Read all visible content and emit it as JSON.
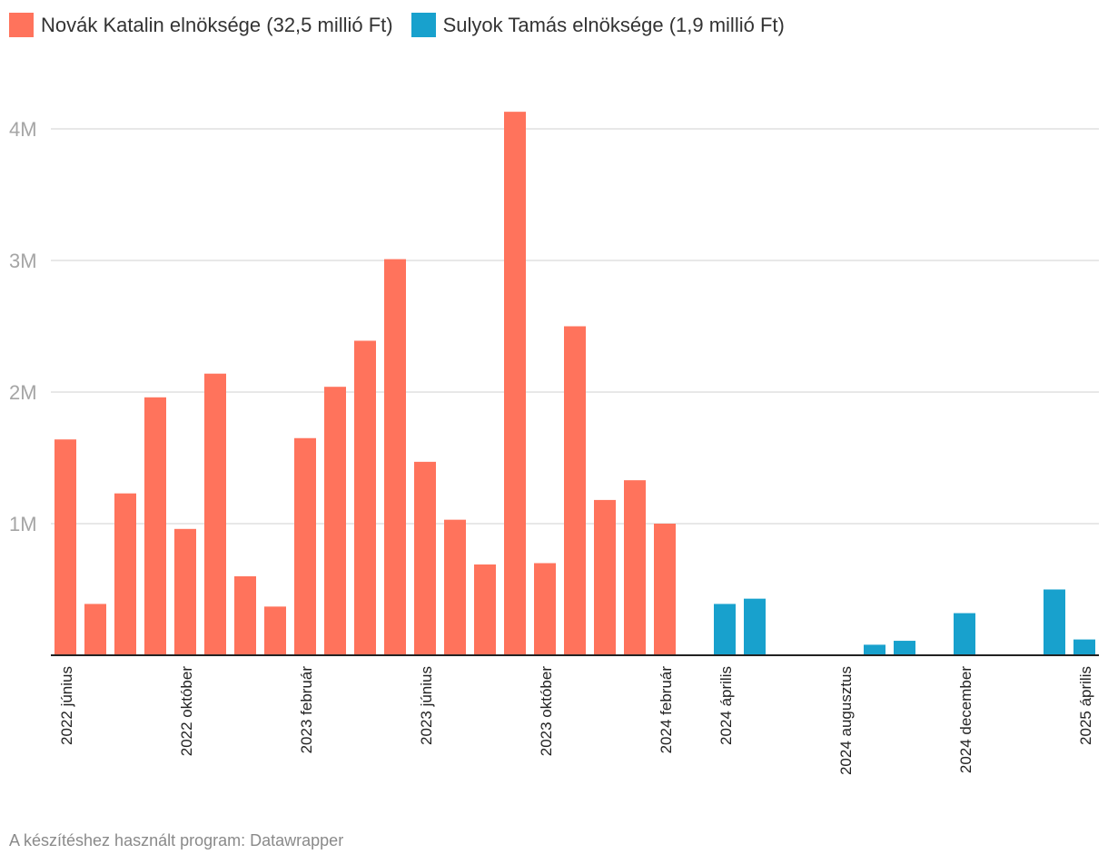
{
  "chart_data": {
    "type": "bar",
    "legend_position": "top-left",
    "grid": true,
    "ylim": [
      0,
      4000000
    ],
    "yticks": [
      {
        "v": 1000000,
        "label": "1M"
      },
      {
        "v": 2000000,
        "label": "2M"
      },
      {
        "v": 3000000,
        "label": "3M"
      },
      {
        "v": 4000000,
        "label": "4M"
      }
    ],
    "series": [
      {
        "name": "Novák Katalin elnöksége (32,5 millió Ft)",
        "color": "#ff735c"
      },
      {
        "name": "Sulyok Tamás elnöksége (1,9 millió Ft)",
        "color": "#18a1cd"
      }
    ],
    "months": [
      "2022-06",
      "2022-07",
      "2022-08",
      "2022-09",
      "2022-10",
      "2022-11",
      "2022-12",
      "2023-01",
      "2023-02",
      "2023-03",
      "2023-04",
      "2023-05",
      "2023-06",
      "2023-07",
      "2023-08",
      "2023-09",
      "2023-10",
      "2023-11",
      "2023-12",
      "2024-01",
      "2024-02",
      "2024-03",
      "2024-04",
      "2024-05",
      "2024-06",
      "2024-07",
      "2024-08",
      "2024-09",
      "2024-10",
      "2024-11",
      "2024-12",
      "2025-01",
      "2025-02",
      "2025-03",
      "2025-04"
    ],
    "values": [
      1640000,
      390000,
      1230000,
      1960000,
      960000,
      2140000,
      600000,
      370000,
      1650000,
      2040000,
      2390000,
      3010000,
      1470000,
      1030000,
      690000,
      4130000,
      700000,
      2500000,
      1180000,
      1330000,
      1000000,
      0,
      390000,
      430000,
      0,
      0,
      0,
      80000,
      110000,
      0,
      320000,
      0,
      0,
      500000,
      120000
    ],
    "series_index": [
      0,
      0,
      0,
      0,
      0,
      0,
      0,
      0,
      0,
      0,
      0,
      0,
      0,
      0,
      0,
      0,
      0,
      0,
      0,
      0,
      0,
      0,
      1,
      1,
      1,
      1,
      1,
      1,
      1,
      1,
      1,
      1,
      1,
      1,
      1
    ],
    "xticks": [
      {
        "i": 0,
        "label": "2022 június"
      },
      {
        "i": 4,
        "label": "2022 október"
      },
      {
        "i": 8,
        "label": "2023 február"
      },
      {
        "i": 12,
        "label": "2023 június"
      },
      {
        "i": 16,
        "label": "2023 október"
      },
      {
        "i": 20,
        "label": "2024 február"
      },
      {
        "i": 22,
        "label": "2024 április"
      },
      {
        "i": 26,
        "label": "2024 augusztus"
      },
      {
        "i": 30,
        "label": "2024 december"
      },
      {
        "i": 34,
        "label": "2025 április"
      }
    ]
  },
  "footer": "A készítéshez használt program: Datawrapper"
}
